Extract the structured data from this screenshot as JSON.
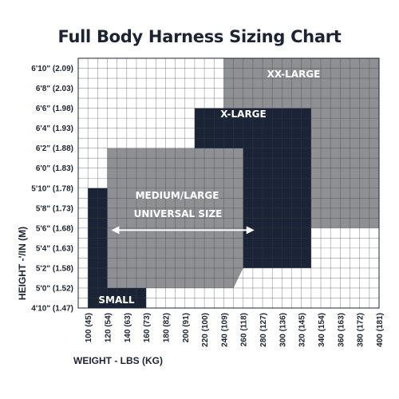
{
  "chart_data": {
    "type": "heatmap",
    "title": "Full Body Harness Sizing Chart",
    "xlabel": "WEIGHT - LBS (KG)",
    "ylabel": "HEIGHT -'/IN (M)",
    "x_ticks": [
      {
        "value": 100,
        "label": "100 (45)"
      },
      {
        "value": 120,
        "label": "120 (54)"
      },
      {
        "value": 140,
        "label": "140 (63)"
      },
      {
        "value": 160,
        "label": "160 (73)"
      },
      {
        "value": 180,
        "label": "180 (82)"
      },
      {
        "value": 200,
        "label": "200 (91)"
      },
      {
        "value": 220,
        "label": "220 (100)"
      },
      {
        "value": 240,
        "label": "240 (109)"
      },
      {
        "value": 260,
        "label": "260 (118)"
      },
      {
        "value": 280,
        "label": "280 (127)"
      },
      {
        "value": 300,
        "label": "300 (136)"
      },
      {
        "value": 320,
        "label": "320 (145)"
      },
      {
        "value": 340,
        "label": "340 (154)"
      },
      {
        "value": 360,
        "label": "360 (163)"
      },
      {
        "value": 380,
        "label": "380 (172)"
      },
      {
        "value": 400,
        "label": "400 (181)"
      }
    ],
    "y_ticks": [
      {
        "value": 58,
        "label": "4'10\" (1.47)"
      },
      {
        "value": 60,
        "label": "5'0\" (1.52)"
      },
      {
        "value": 62,
        "label": "5'2\" (1.58)"
      },
      {
        "value": 64,
        "label": "5'4\" (1.63)"
      },
      {
        "value": 66,
        "label": "5'6\" (1.68)"
      },
      {
        "value": 68,
        "label": "5'8\" (1.73)"
      },
      {
        "value": 70,
        "label": "5'10\" (1.78)"
      },
      {
        "value": 72,
        "label": "6'0\" (1.83)"
      },
      {
        "value": 74,
        "label": "6'2\" (1.88)"
      },
      {
        "value": 76,
        "label": "6'4\" (1.93)"
      },
      {
        "value": 78,
        "label": "6'6\" (1.98)"
      },
      {
        "value": 80,
        "label": "6'8\" (2.03)"
      },
      {
        "value": 82,
        "label": "6'10\" (2.09)"
      }
    ],
    "xlim": [
      90,
      400
    ],
    "ylim": [
      58,
      83
    ],
    "grid": true,
    "zones": [
      {
        "label": "XX-LARGE",
        "color": "#8e9094",
        "polygon": [
          [
            240,
            83
          ],
          [
            400,
            83
          ],
          [
            400,
            66
          ],
          [
            240,
            66
          ]
        ]
      },
      {
        "label": "X-LARGE",
        "color": "#1b2436",
        "polygon": [
          [
            210,
            78
          ],
          [
            330,
            78
          ],
          [
            330,
            62
          ],
          [
            210,
            62
          ]
        ]
      },
      {
        "label": "MEDIUM/LARGE",
        "label2": "UNIVERSAL SIZE",
        "color": "#8e9094",
        "polygon": [
          [
            120,
            74
          ],
          [
            260,
            74
          ],
          [
            260,
            62
          ],
          [
            250,
            60
          ],
          [
            120,
            60
          ]
        ]
      },
      {
        "label": "SMALL",
        "color": "#1b2436",
        "polygon": [
          [
            100,
            70
          ],
          [
            120,
            70
          ],
          [
            120,
            60
          ],
          [
            160,
            60
          ],
          [
            160,
            58
          ],
          [
            100,
            58
          ]
        ]
      }
    ],
    "arrow": {
      "x_from": 120,
      "x_to": 260,
      "y": 65.8
    },
    "colors": {
      "dark": "#1b2436",
      "gray": "#8e9094",
      "grid": "#3a3f47",
      "text": "#1c2433"
    }
  }
}
